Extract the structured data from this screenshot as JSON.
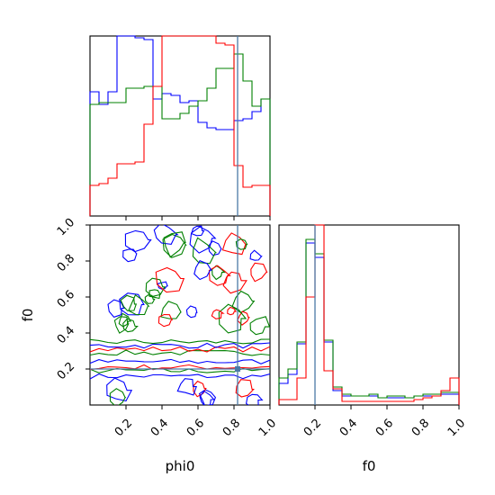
{
  "chart_data": {
    "type": "corner",
    "parameters": [
      "phi0",
      "f0"
    ],
    "truth": {
      "phi0": 0.82,
      "f0": 0.2,
      "color": "#4a79a6"
    },
    "series": [
      {
        "color": "#0000ff"
      },
      {
        "color": "#008000"
      },
      {
        "color": "#ff0000"
      }
    ],
    "phi0_hist": {
      "bins": [
        0.0,
        0.05,
        0.1,
        0.15,
        0.2,
        0.25,
        0.3,
        0.35,
        0.4,
        0.45,
        0.5,
        0.55,
        0.6,
        0.65,
        0.7,
        0.75,
        0.8,
        0.85,
        0.9,
        0.95,
        1.0
      ],
      "counts": [
        [
          0.69,
          0.62,
          0.69,
          1.0,
          1.0,
          0.99,
          0.98,
          0.65,
          0.68,
          0.67,
          0.63,
          0.64,
          0.52,
          0.49,
          0.48,
          0.48,
          0.53,
          0.54,
          0.58,
          0.65
        ],
        [
          0.62,
          0.63,
          0.63,
          0.63,
          0.71,
          0.71,
          0.72,
          0.72,
          0.54,
          0.54,
          0.57,
          0.61,
          0.64,
          0.71,
          0.82,
          0.82,
          0.9,
          0.75,
          0.61,
          0.65
        ],
        [
          0.17,
          0.18,
          0.21,
          0.29,
          0.29,
          0.3,
          0.51,
          0.72,
          1.0,
          1.0,
          1.0,
          1.0,
          1.0,
          1.0,
          0.96,
          0.95,
          0.28,
          0.16,
          0.17,
          0.17
        ]
      ]
    },
    "f0_hist": {
      "bins": [
        0.0,
        0.05,
        0.1,
        0.15,
        0.2,
        0.25,
        0.3,
        0.35,
        0.4,
        0.45,
        0.5,
        0.55,
        0.6,
        0.65,
        0.7,
        0.75,
        0.8,
        0.85,
        0.9,
        0.95,
        1.0
      ],
      "counts": [
        [
          0.12,
          0.17,
          0.34,
          0.9,
          0.82,
          0.35,
          0.08,
          0.05,
          0.05,
          0.05,
          0.05,
          0.04,
          0.04,
          0.04,
          0.04,
          0.05,
          0.05,
          0.05,
          0.06,
          0.06
        ],
        [
          0.15,
          0.2,
          0.35,
          0.92,
          0.84,
          0.36,
          0.1,
          0.06,
          0.05,
          0.05,
          0.06,
          0.04,
          0.05,
          0.05,
          0.04,
          0.05,
          0.06,
          0.06,
          0.07,
          0.07
        ],
        [
          0.03,
          0.03,
          0.15,
          0.6,
          1.0,
          0.19,
          0.09,
          0.02,
          0.02,
          0.02,
          0.02,
          0.02,
          0.02,
          0.02,
          0.02,
          0.03,
          0.04,
          0.05,
          0.08,
          0.15
        ]
      ]
    },
    "joint_ticks": {
      "phi0": [
        0.2,
        0.4,
        0.6,
        0.8,
        1.0
      ],
      "f0": [
        0.2,
        0.4,
        0.6,
        0.8,
        1.0
      ]
    },
    "f0_ticks": [
      0.2,
      0.4,
      0.6,
      0.8,
      1.0
    ],
    "xlabel_left": "phi0",
    "xlabel_right": "f0",
    "ylabel": "f0"
  },
  "ticks_text": {
    "x": [
      "0.2",
      "0.4",
      "0.6",
      "0.8",
      "1.0"
    ],
    "y": [
      "0.2",
      "0.4",
      "0.6",
      "0.8",
      "1.0"
    ],
    "x_right": [
      "0.2",
      "0.4",
      "0.6",
      "0.8",
      "1.0"
    ]
  }
}
